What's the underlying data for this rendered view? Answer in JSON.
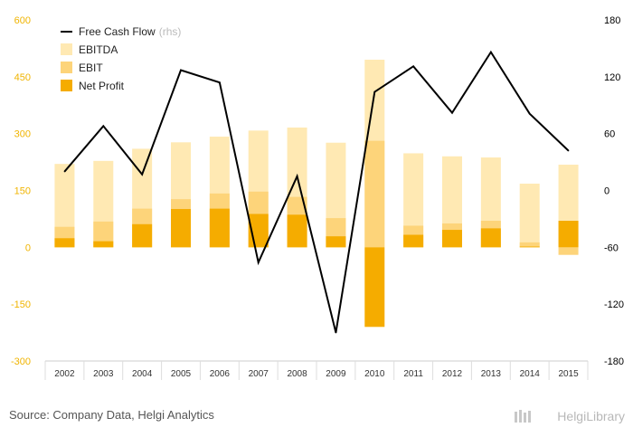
{
  "chart_data": {
    "type": "bar",
    "categories": [
      "2002",
      "2003",
      "2004",
      "2005",
      "2006",
      "2007",
      "2008",
      "2009",
      "2010",
      "2011",
      "2012",
      "2013",
      "2014",
      "2015"
    ],
    "series": [
      {
        "name": "EBITDA",
        "axis": "left",
        "color": "#ffe9b3",
        "values": [
          220,
          228,
          260,
          277,
          292,
          308,
          316,
          276,
          495,
          248,
          240,
          237,
          168,
          218
        ]
      },
      {
        "name": "EBIT",
        "axis": "left",
        "color": "#fdd47a",
        "values": [
          54,
          68,
          102,
          127,
          142,
          147,
          133,
          77,
          281,
          57,
          63,
          70,
          13,
          -20
        ]
      },
      {
        "name": "Net Profit",
        "axis": "left",
        "color": "#f5ac00",
        "values": [
          24,
          16,
          61,
          101,
          102,
          88,
          86,
          29,
          -210,
          33,
          46,
          50,
          2,
          70
        ]
      },
      {
        "name": "Free Cash Flow",
        "axis": "right",
        "color": "#000000",
        "values": [
          20,
          68,
          17,
          127,
          114,
          -76,
          15,
          -150,
          104,
          131,
          82,
          146,
          81,
          42
        ]
      }
    ],
    "left_axis": {
      "ylim": [
        -300,
        600
      ],
      "ticks": [
        -300,
        -150,
        0,
        150,
        300,
        450,
        600
      ],
      "color": "#f0b400"
    },
    "right_axis": {
      "ylim": [
        -180,
        180
      ],
      "ticks": [
        -180,
        -120,
        -60,
        0,
        60,
        120,
        180
      ],
      "color": "#000000"
    },
    "grid": false,
    "legend": {
      "placement": "top-left",
      "rhs_suffix": "(rhs)"
    }
  },
  "labels": {
    "left_ticks": [
      "-300",
      "-150",
      "0",
      "150",
      "300",
      "450",
      "600"
    ],
    "right_ticks": [
      "-180",
      "-120",
      "-60",
      "0",
      "60",
      "120",
      "180"
    ]
  },
  "legend_items": [
    {
      "label": "Free Cash Flow",
      "kind": "line",
      "color": "#000000"
    },
    {
      "label": "EBITDA",
      "kind": "box",
      "color": "#ffe9b3"
    },
    {
      "label": "EBIT",
      "kind": "box",
      "color": "#fdd47a"
    },
    {
      "label": "Net Profit",
      "kind": "box",
      "color": "#f5ac00"
    }
  ],
  "footer": {
    "source": "Source: Company Data, Helgi Analytics",
    "brand": "HelgiLibrary"
  }
}
